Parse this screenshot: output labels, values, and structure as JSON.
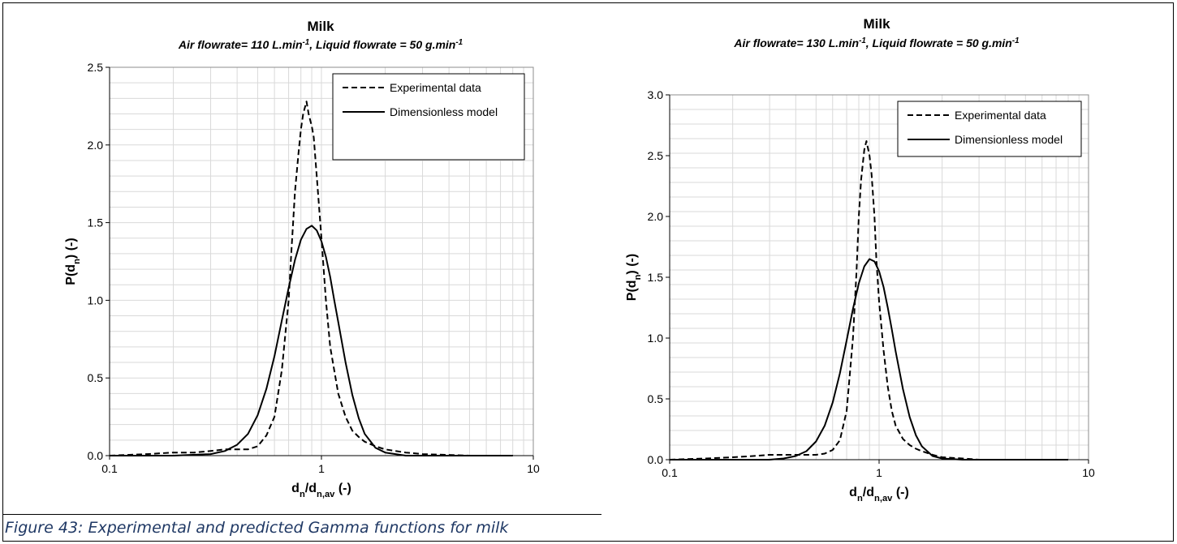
{
  "figure": {
    "caption": "Figure 43: Experimental and predicted Gamma functions for milk"
  },
  "chart_data": [
    {
      "type": "line",
      "title": "Milk",
      "subtitle_parts": [
        "Air flowrate= 110 L.min",
        "-1",
        ", Liquid flowrate = 50 g.min",
        "-1"
      ],
      "xlabel_parts": [
        "d",
        "n",
        "/d",
        "n,av",
        " (-)"
      ],
      "ylabel_parts": [
        "P(d",
        "n",
        ") (-)"
      ],
      "x_scale": "log",
      "xlim": [
        0.1,
        10
      ],
      "ylim": [
        0,
        2.5
      ],
      "x_ticks": [
        0.1,
        1,
        10
      ],
      "x_tick_labels": [
        "0.1",
        "1",
        "10"
      ],
      "y_ticks": [
        0,
        0.5,
        1.0,
        1.5,
        2.0,
        2.5
      ],
      "y_tick_labels": [
        "0.0",
        "0.5",
        "1.0",
        "1.5",
        "2.0",
        "2.5"
      ],
      "grid": true,
      "legend_position": "top-right",
      "series": [
        {
          "name": "Experimental data",
          "style": "dashed",
          "x": [
            0.1,
            0.15,
            0.2,
            0.25,
            0.3,
            0.35,
            0.4,
            0.45,
            0.5,
            0.55,
            0.6,
            0.65,
            0.7,
            0.72,
            0.75,
            0.78,
            0.8,
            0.82,
            0.85,
            0.87,
            0.9,
            0.92,
            0.95,
            1.0,
            1.05,
            1.1,
            1.2,
            1.3,
            1.4,
            1.5,
            1.6,
            1.8,
            2.0,
            2.5,
            3.0,
            5.0,
            8.0
          ],
          "y": [
            0.0,
            0.01,
            0.02,
            0.02,
            0.03,
            0.04,
            0.04,
            0.04,
            0.06,
            0.13,
            0.25,
            0.55,
            1.0,
            1.3,
            1.7,
            1.95,
            2.1,
            2.2,
            2.28,
            2.2,
            2.12,
            2.05,
            1.8,
            1.4,
            1.0,
            0.7,
            0.4,
            0.25,
            0.16,
            0.12,
            0.09,
            0.06,
            0.04,
            0.02,
            0.01,
            0.0,
            0.0
          ]
        },
        {
          "name": "Dimensionless model",
          "style": "solid",
          "x": [
            0.1,
            0.2,
            0.3,
            0.35,
            0.4,
            0.45,
            0.5,
            0.55,
            0.6,
            0.65,
            0.7,
            0.75,
            0.8,
            0.85,
            0.9,
            0.95,
            1.0,
            1.05,
            1.1,
            1.15,
            1.2,
            1.3,
            1.4,
            1.5,
            1.6,
            1.8,
            2.0,
            2.5,
            3.0,
            5.0,
            8.0
          ],
          "y": [
            0.0,
            0.0,
            0.01,
            0.03,
            0.07,
            0.14,
            0.26,
            0.43,
            0.64,
            0.87,
            1.08,
            1.26,
            1.39,
            1.46,
            1.48,
            1.45,
            1.38,
            1.28,
            1.15,
            1.0,
            0.86,
            0.6,
            0.39,
            0.24,
            0.14,
            0.05,
            0.02,
            0.0,
            0.0,
            0.0,
            0.0
          ]
        }
      ]
    },
    {
      "type": "line",
      "title": "Milk",
      "subtitle_parts": [
        "Air flowrate= 130 L.min",
        "-1",
        ", Liquid flowrate = 50 g.min",
        "-1"
      ],
      "xlabel_parts": [
        "d",
        "n",
        "/d",
        "n,av",
        " (-)"
      ],
      "ylabel_parts": [
        "P(d",
        "n",
        ") (-)"
      ],
      "x_scale": "log",
      "xlim": [
        0.1,
        10
      ],
      "ylim": [
        0,
        3.0
      ],
      "x_ticks": [
        0.1,
        1,
        10
      ],
      "x_tick_labels": [
        "0.1",
        "1",
        "10"
      ],
      "y_ticks": [
        0,
        0.5,
        1.0,
        1.5,
        2.0,
        2.5,
        3.0
      ],
      "y_tick_labels": [
        "0.0",
        "0.5",
        "1.0",
        "1.5",
        "2.0",
        "2.5",
        "3.0"
      ],
      "grid": true,
      "legend_position": "top-right",
      "series": [
        {
          "name": "Experimental data",
          "style": "dashed",
          "x": [
            0.1,
            0.15,
            0.2,
            0.25,
            0.3,
            0.35,
            0.4,
            0.45,
            0.5,
            0.55,
            0.6,
            0.65,
            0.7,
            0.75,
            0.78,
            0.8,
            0.82,
            0.85,
            0.87,
            0.9,
            0.92,
            0.95,
            0.97,
            1.0,
            1.05,
            1.1,
            1.15,
            1.2,
            1.3,
            1.4,
            1.5,
            1.6,
            1.8,
            2.0,
            2.5,
            3.0,
            5.0,
            8.0
          ],
          "y": [
            0.0,
            0.01,
            0.02,
            0.03,
            0.04,
            0.04,
            0.04,
            0.04,
            0.04,
            0.05,
            0.08,
            0.16,
            0.4,
            1.0,
            1.55,
            2.0,
            2.3,
            2.55,
            2.62,
            2.5,
            2.35,
            2.0,
            1.65,
            1.3,
            0.9,
            0.6,
            0.4,
            0.28,
            0.17,
            0.12,
            0.09,
            0.07,
            0.04,
            0.02,
            0.01,
            0.0,
            0.0,
            0.0
          ]
        },
        {
          "name": "Dimensionless model",
          "style": "solid",
          "x": [
            0.1,
            0.2,
            0.3,
            0.35,
            0.4,
            0.45,
            0.5,
            0.55,
            0.6,
            0.65,
            0.7,
            0.75,
            0.8,
            0.85,
            0.9,
            0.95,
            1.0,
            1.05,
            1.1,
            1.15,
            1.2,
            1.3,
            1.4,
            1.5,
            1.6,
            1.8,
            2.0,
            2.5,
            3.0,
            5.0,
            8.0
          ],
          "y": [
            0.0,
            0.0,
            0.0,
            0.01,
            0.03,
            0.07,
            0.15,
            0.28,
            0.47,
            0.71,
            0.98,
            1.24,
            1.45,
            1.59,
            1.65,
            1.63,
            1.55,
            1.42,
            1.25,
            1.07,
            0.89,
            0.58,
            0.35,
            0.2,
            0.11,
            0.03,
            0.01,
            0.0,
            0.0,
            0.0,
            0.0
          ]
        }
      ]
    }
  ]
}
